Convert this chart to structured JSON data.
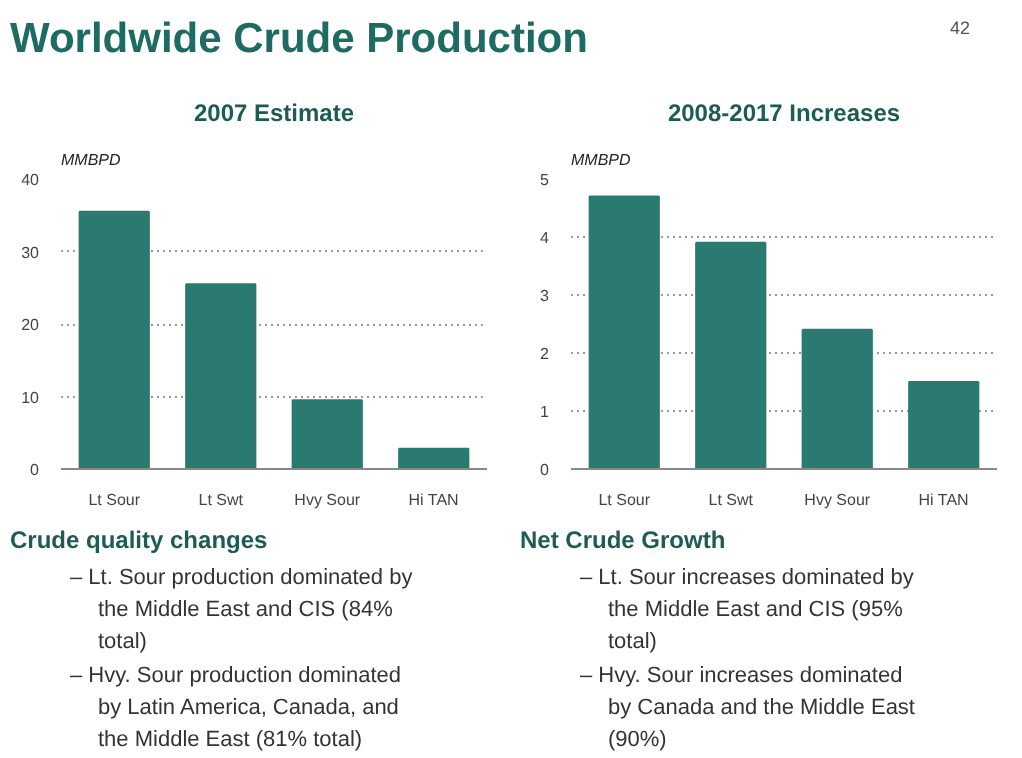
{
  "chart_data": [
    {
      "type": "other",
      "title": "Worldwide Crude Production",
      "annotations": [
        "42"
      ]
    },
    {
      "type": "bar",
      "title": "2007 Estimate",
      "ylabel": "MMBPD",
      "categories": [
        "Lt Sour",
        "Lt Swt",
        "Hvy Sour",
        "Hi TAN"
      ],
      "values": [
        35.5,
        25.5,
        9.5,
        2.8
      ],
      "color": "#2b7a72",
      "ylim": [
        0,
        40
      ],
      "yticks": [
        0,
        10,
        20,
        30,
        40
      ],
      "grid": "y"
    },
    {
      "type": "bar",
      "title": "2008-2017 Increases",
      "ylabel": "MMBPD",
      "categories": [
        "Lt Sour",
        "Lt Swt",
        "Hvy Sour",
        "Hi TAN"
      ],
      "values": [
        4.7,
        3.9,
        2.4,
        1.5
      ],
      "color": "#2b7a72",
      "ylim": [
        0,
        5
      ],
      "yticks": [
        0,
        1,
        2,
        3,
        4,
        5
      ],
      "grid": "y"
    },
    {
      "type": "other",
      "title": "Crude quality changes",
      "annotations": [
        "– Lt. Sour production dominated by the Middle East and CIS (84% total)",
        "– Hvy. Sour production dominated by Latin America, Canada, and the Middle East (81% total)"
      ]
    },
    {
      "type": "other",
      "title": "Net Crude Growth",
      "annotations": [
        "– Lt. Sour increases dominated by the Middle East and CIS (95% total)",
        "– Hvy. Sour increases dominated by Canada and the Middle East (90%)"
      ]
    }
  ]
}
